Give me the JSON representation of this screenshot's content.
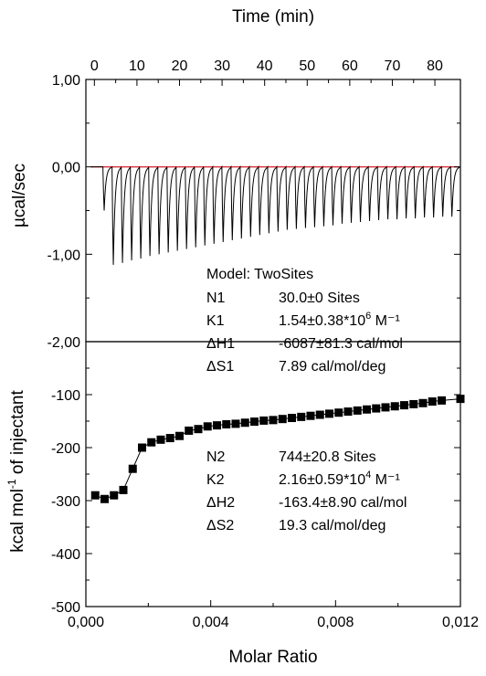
{
  "chart_data": [
    {
      "type": "line",
      "panel": "top",
      "xlabel": "Time (min)",
      "ylabel": "µcal/sec",
      "xlim": [
        -2,
        86
      ],
      "ylim": [
        -2.0,
        1.0
      ],
      "x_ticks": [
        0,
        10,
        20,
        30,
        40,
        50,
        60,
        70,
        80
      ],
      "y_ticks": [
        1.0,
        0.0,
        -1.0,
        -2.0
      ],
      "y_tick_labels": [
        "1,00",
        "0,00",
        "-1,00",
        "-2,00"
      ],
      "baseline": 0.0,
      "baseline_color": "#d9303a",
      "injection_times": [
        2.0,
        4.15,
        6.3,
        8.45,
        10.6,
        12.75,
        14.9,
        17.05,
        19.2,
        21.35,
        23.5,
        25.65,
        27.8,
        29.95,
        32.1,
        34.25,
        36.4,
        38.55,
        40.7,
        42.85,
        45.0,
        47.15,
        49.3,
        51.45,
        53.6,
        55.75,
        57.9,
        60.05,
        62.2,
        64.35,
        66.5,
        68.65,
        70.8,
        72.95,
        75.1,
        77.25,
        79.4,
        81.55,
        83.7
      ],
      "peak_minima": [
        -0.5,
        -1.12,
        -1.1,
        -1.07,
        -1.05,
        -1.02,
        -1.0,
        -0.98,
        -0.96,
        -0.94,
        -0.92,
        -0.9,
        -0.88,
        -0.86,
        -0.84,
        -0.82,
        -0.8,
        -0.78,
        -0.76,
        -0.74,
        -0.72,
        -0.71,
        -0.7,
        -0.69,
        -0.68,
        -0.67,
        -0.65,
        -0.64,
        -0.63,
        -0.62,
        -0.61,
        -0.6,
        -0.6,
        -0.59,
        -0.59,
        -0.58,
        -0.58,
        -0.57,
        -0.57
      ]
    },
    {
      "type": "scatter",
      "panel": "bottom",
      "xlabel": "Molar Ratio",
      "ylabel": "kcal mol-1 of injectant",
      "xlim": [
        0.0,
        0.012
      ],
      "ylim": [
        -500,
        0
      ],
      "x_ticks": [
        0.0,
        0.004,
        0.008,
        0.012
      ],
      "x_tick_labels": [
        "0,000",
        "0,004",
        "0,008",
        "0,012"
      ],
      "y_ticks": [
        -100,
        -200,
        -300,
        -400,
        -500
      ],
      "x": [
        0.0003,
        0.0006,
        0.0009,
        0.0012,
        0.0015,
        0.0018,
        0.0021,
        0.0024,
        0.0027,
        0.003,
        0.0033,
        0.0036,
        0.0039,
        0.0042,
        0.0045,
        0.0048,
        0.0051,
        0.0054,
        0.0057,
        0.006,
        0.0063,
        0.0066,
        0.0069,
        0.0072,
        0.0075,
        0.0078,
        0.0081,
        0.0084,
        0.0087,
        0.009,
        0.0093,
        0.0096,
        0.0099,
        0.0102,
        0.0105,
        0.0108,
        0.0111,
        0.0114,
        0.012
      ],
      "y": [
        -290,
        -297,
        -290,
        -280,
        -240,
        -200,
        -190,
        -185,
        -182,
        -178,
        -168,
        -165,
        -160,
        -158,
        -156,
        -155,
        -153,
        -151,
        -149,
        -148,
        -146,
        -144,
        -142,
        -140,
        -138,
        -136,
        -134,
        -132,
        -130,
        -128,
        -126,
        -124,
        -122,
        -120,
        -118,
        -116,
        -113,
        -111,
        -108
      ],
      "fit_line": true
    }
  ],
  "annotations": {
    "model": "Model: TwoSites",
    "rows": [
      {
        "key": "N1",
        "value": "30.0±0 Sites",
        "sup": "",
        "tail": ""
      },
      {
        "key": "K1",
        "value": "1.54±0.38*10",
        "sup": "6",
        "tail": " M⁻¹"
      },
      {
        "key": "ΔH1",
        "value": "-6087±81.3 cal/mol",
        "sup": "",
        "tail": ""
      },
      {
        "key": "ΔS1",
        "value": "7.89 cal/mol/deg",
        "sup": "",
        "tail": ""
      },
      {
        "key": "N2",
        "value": "744±20.8 Sites",
        "sup": "",
        "tail": ""
      },
      {
        "key": "K2",
        "value": "2.16±0.59*10",
        "sup": "4",
        "tail": " M⁻¹"
      },
      {
        "key": "ΔH2",
        "value": "-163.4±8.90 cal/mol",
        "sup": "",
        "tail": ""
      },
      {
        "key": "ΔS2",
        "value": "19.3 cal/mol/deg",
        "sup": "",
        "tail": ""
      }
    ]
  },
  "top_ylabel_text": "µcal/sec",
  "bottom_ylabel": {
    "before": "kcal mol",
    "sup": "-1",
    "after": " of injectant"
  }
}
